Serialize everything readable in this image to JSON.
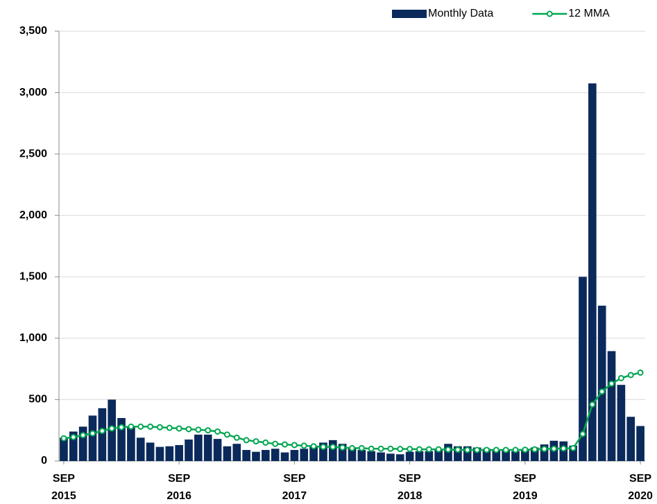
{
  "chart_data": {
    "type": "bar",
    "categories": [
      "SEP 2015",
      null,
      null,
      null,
      null,
      null,
      null,
      null,
      null,
      null,
      null,
      null,
      "SEP 2016",
      null,
      null,
      null,
      null,
      null,
      null,
      null,
      null,
      null,
      null,
      null,
      "SEP 2017",
      null,
      null,
      null,
      null,
      null,
      null,
      null,
      null,
      null,
      null,
      null,
      "SEP 2018",
      null,
      null,
      null,
      null,
      null,
      null,
      null,
      null,
      null,
      null,
      null,
      "SEP 2019",
      null,
      null,
      null,
      null,
      null,
      null,
      null,
      null,
      null,
      null,
      null,
      "SEP 2020"
    ],
    "series": [
      {
        "name": "Monthly Data",
        "type": "bar",
        "color": "#0b2a5b",
        "values": [
          190,
          240,
          280,
          370,
          430,
          500,
          350,
          280,
          190,
          150,
          115,
          120,
          130,
          175,
          215,
          215,
          180,
          120,
          140,
          90,
          75,
          90,
          100,
          70,
          90,
          100,
          120,
          150,
          170,
          140,
          110,
          90,
          80,
          70,
          60,
          55,
          75,
          80,
          80,
          100,
          140,
          120,
          120,
          110,
          100,
          90,
          90,
          80,
          95,
          110,
          135,
          165,
          160,
          125,
          1500,
          3075,
          1265,
          895,
          620,
          360,
          285
        ]
      },
      {
        "name": "12 MMA",
        "type": "line",
        "color": "#00a651",
        "values": [
          185,
          195,
          210,
          225,
          245,
          265,
          275,
          280,
          280,
          280,
          275,
          270,
          265,
          260,
          255,
          250,
          240,
          215,
          190,
          170,
          160,
          150,
          140,
          135,
          130,
          125,
          120,
          115,
          115,
          110,
          105,
          105,
          100,
          100,
          100,
          98,
          98,
          95,
          95,
          95,
          93,
          92,
          90,
          90,
          90,
          90,
          90,
          90,
          92,
          95,
          98,
          100,
          102,
          105,
          220,
          460,
          565,
          630,
          675,
          700,
          720
        ]
      }
    ],
    "ylim": [
      0,
      3500
    ],
    "yticks": [
      0,
      500,
      {
        "value": 1000,
        "label": "1,000"
      },
      {
        "value": 1500,
        "label": "1,500"
      },
      {
        "value": 2000,
        "label": "2,000"
      },
      {
        "value": 2500,
        "label": "2,500"
      },
      {
        "value": 3000,
        "label": "3,000"
      },
      {
        "value": 3500,
        "label": "3,500"
      }
    ],
    "grid": true,
    "legend": "top-right"
  }
}
